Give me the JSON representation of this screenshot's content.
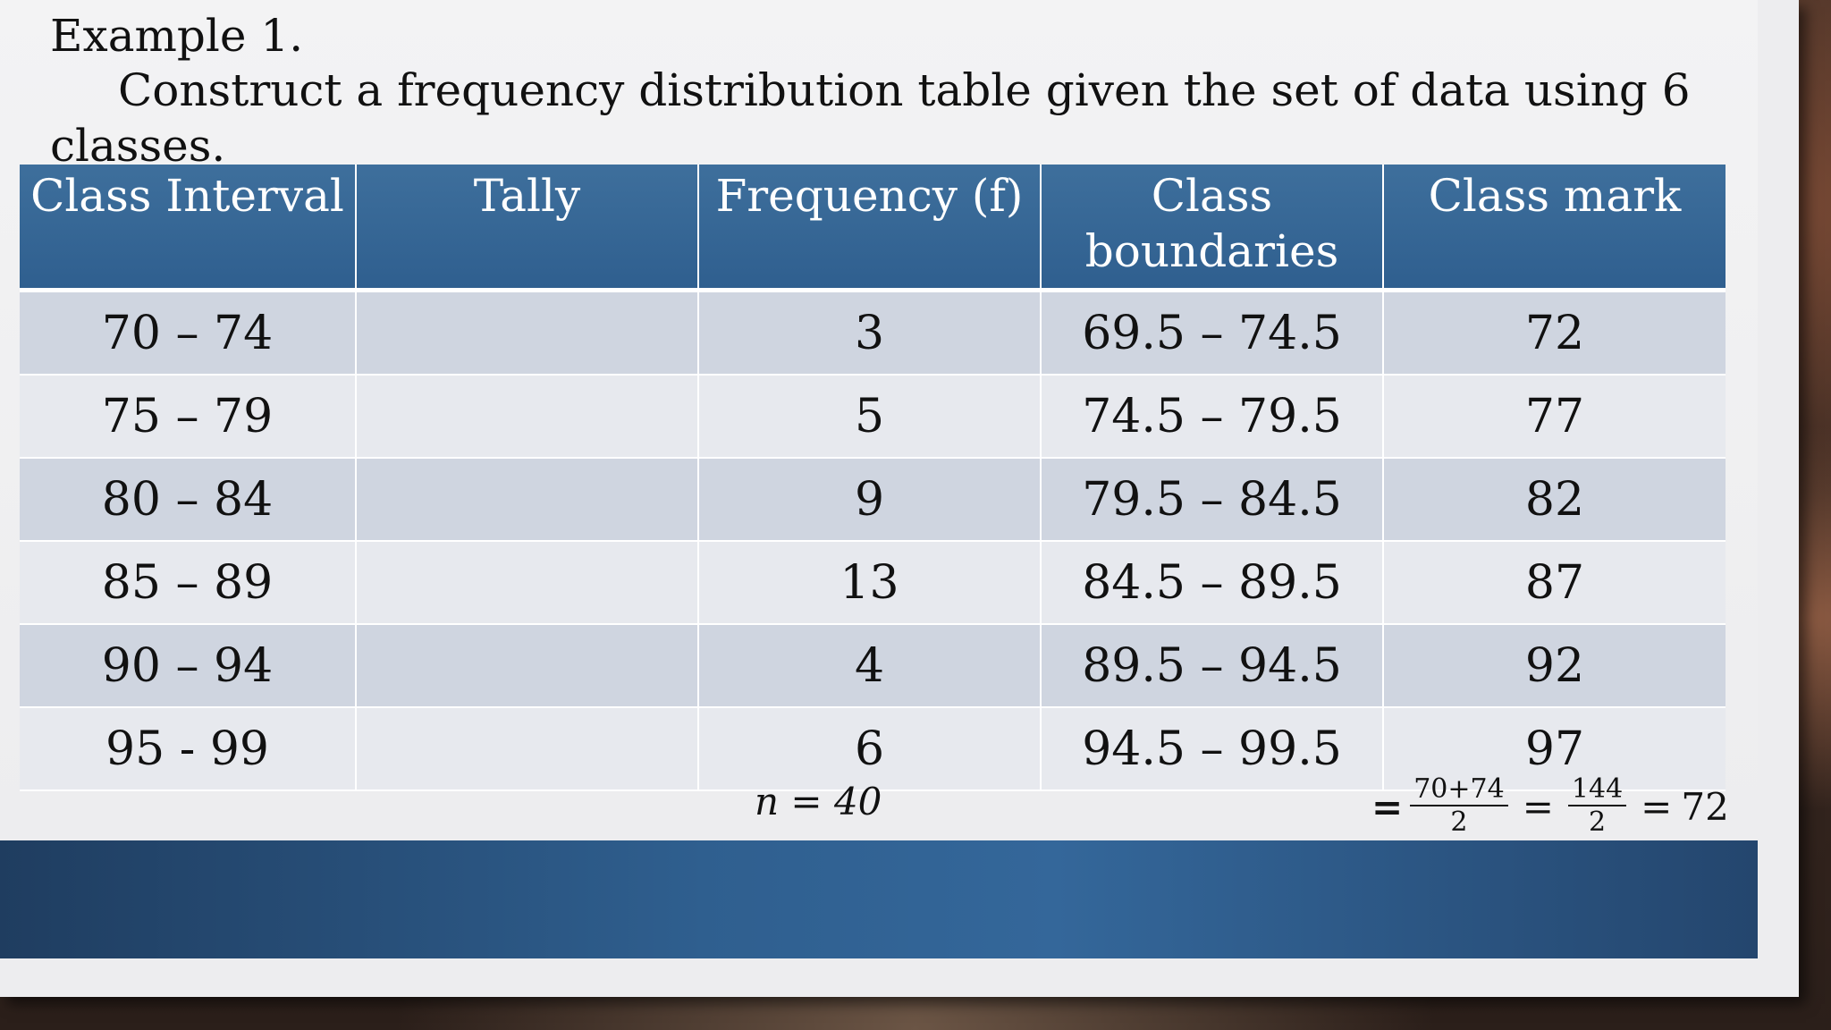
{
  "title": "Example 1.",
  "instruction": "Construct a frequency distribution table given the set of data using 6 classes.",
  "table": {
    "headers": [
      "Class Interval",
      "Tally",
      "Frequency (f)",
      "Class boundaries",
      "Class mark"
    ],
    "rows": [
      [
        "70 – 74",
        "",
        "3",
        "69.5 – 74.5",
        "72"
      ],
      [
        "75 – 79",
        "",
        "5",
        "74.5 – 79.5",
        "77"
      ],
      [
        "80 – 84",
        "",
        "9",
        "79.5 – 84.5",
        "82"
      ],
      [
        "85 – 89",
        "",
        "13",
        "84.5 – 89.5",
        "87"
      ],
      [
        "90 – 94",
        "",
        "4",
        "89.5 – 94.5",
        "92"
      ],
      [
        "95 - 99",
        "",
        "6",
        "94.5 – 99.5",
        "97"
      ]
    ]
  },
  "total": "n = 40",
  "formula": {
    "lead": "=",
    "frac1_num": "70+74",
    "frac1_den": "2",
    "eq1": "=",
    "frac2_num": "144",
    "frac2_den": "2",
    "eq2": "=",
    "result": "72"
  },
  "colors": {
    "header_bg": "#2f5f8f",
    "row_odd": "#cfd5e0",
    "row_even": "#e7e9ee",
    "footer_band": "#2f5f8f"
  }
}
